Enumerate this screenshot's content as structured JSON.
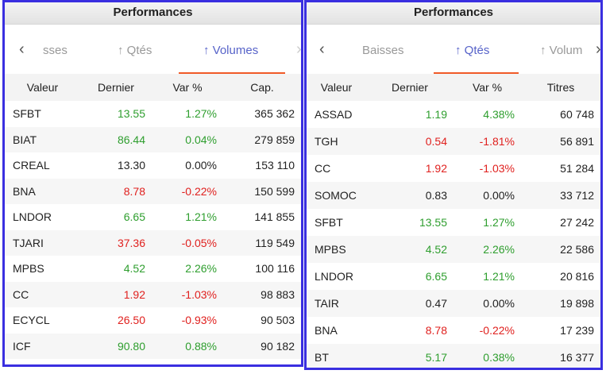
{
  "left": {
    "title": "Performances",
    "tabs": [
      "sses",
      "↑ Qtés",
      "↑ Volumes"
    ],
    "active": 2,
    "headers": [
      "Valeur",
      "Dernier",
      "Var %",
      "Cap."
    ],
    "rows": [
      [
        "SFBT",
        "13.55",
        "1.27%",
        "365 362",
        "g"
      ],
      [
        "BIAT",
        "86.44",
        "0.04%",
        "279 859",
        "g"
      ],
      [
        "CREAL",
        "13.30",
        "0.00%",
        "153 110",
        ""
      ],
      [
        "BNA",
        "8.78",
        "-0.22%",
        "150 599",
        "r"
      ],
      [
        "LNDOR",
        "6.65",
        "1.21%",
        "141 855",
        "g"
      ],
      [
        "TJARI",
        "37.36",
        "-0.05%",
        "119 549",
        "r"
      ],
      [
        "MPBS",
        "4.52",
        "2.26%",
        "100 116",
        "g"
      ],
      [
        "CC",
        "1.92",
        "-1.03%",
        "98 883",
        "r"
      ],
      [
        "ECYCL",
        "26.50",
        "-0.93%",
        "90 503",
        "r"
      ],
      [
        "ICF",
        "90.80",
        "0.88%",
        "90 182",
        "g"
      ]
    ]
  },
  "right": {
    "title": "Performances",
    "tabs": [
      "Baisses",
      "↑ Qtés",
      "↑ Volum"
    ],
    "active": 1,
    "headers": [
      "Valeur",
      "Dernier",
      "Var %",
      "Titres"
    ],
    "rows": [
      [
        "ASSAD",
        "1.19",
        "4.38%",
        "60 748",
        "g"
      ],
      [
        "TGH",
        "0.54",
        "-1.81%",
        "56 891",
        "r"
      ],
      [
        "CC",
        "1.92",
        "-1.03%",
        "51 284",
        "r"
      ],
      [
        "SOMOC",
        "0.83",
        "0.00%",
        "33 712",
        ""
      ],
      [
        "SFBT",
        "13.55",
        "1.27%",
        "27 242",
        "g"
      ],
      [
        "MPBS",
        "4.52",
        "2.26%",
        "22 586",
        "g"
      ],
      [
        "LNDOR",
        "6.65",
        "1.21%",
        "20 816",
        "g"
      ],
      [
        "TAIR",
        "0.47",
        "0.00%",
        "19 898",
        ""
      ],
      [
        "BNA",
        "8.78",
        "-0.22%",
        "17 239",
        "r"
      ],
      [
        "BT",
        "5.17",
        "0.38%",
        "16 377",
        "g"
      ]
    ]
  },
  "colors": {
    "up": "#2e9e2e",
    "down": "#e0201e",
    "accent": "#5763c9",
    "underline": "#f05a28"
  }
}
